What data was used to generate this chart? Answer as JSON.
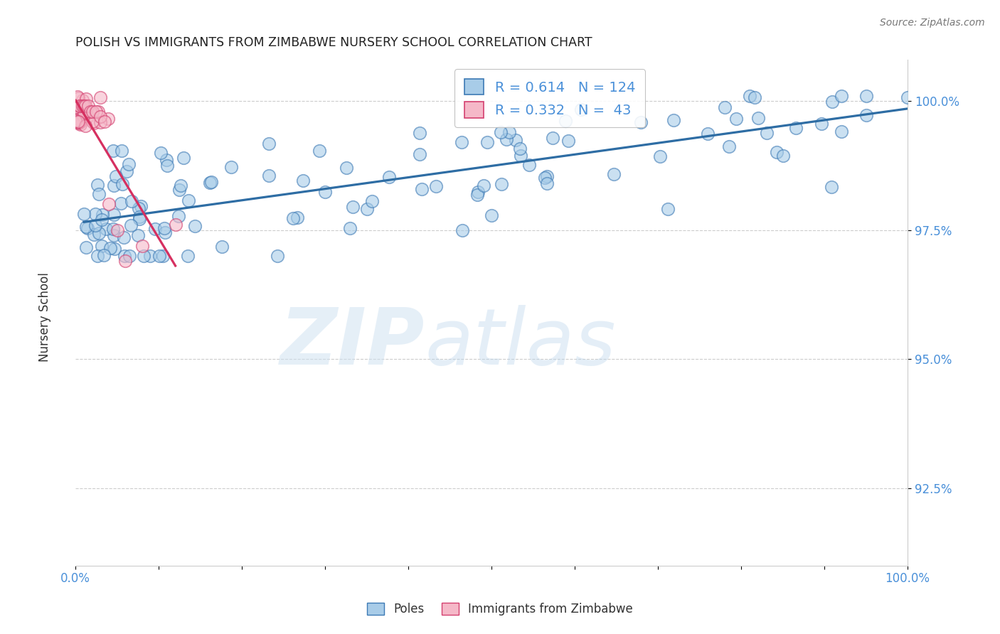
{
  "title": "POLISH VS IMMIGRANTS FROM ZIMBABWE NURSERY SCHOOL CORRELATION CHART",
  "source": "Source: ZipAtlas.com",
  "ylabel": "Nursery School",
  "xlim": [
    0.0,
    1.0
  ],
  "ylim": [
    0.91,
    1.008
  ],
  "yticks": [
    0.925,
    0.95,
    0.975,
    1.0
  ],
  "ytick_labels": [
    "92.5%",
    "95.0%",
    "97.5%",
    "100.0%"
  ],
  "xtick_labels_left": "0.0%",
  "xtick_labels_right": "100.0%",
  "blue_color": "#a8cce8",
  "blue_edge": "#3d7ab5",
  "pink_color": "#f5b8c8",
  "pink_edge": "#d44070",
  "trendline_blue": "#2e6da4",
  "trendline_pink": "#d63060",
  "legend_R_blue": "0.614",
  "legend_N_blue": "124",
  "legend_R_pink": "0.332",
  "legend_N_pink": " 43",
  "legend_label_blue": "Poles",
  "legend_label_pink": "Immigrants from Zimbabwe",
  "grid_color": "#cccccc",
  "tick_color": "#4a90d9",
  "background": "#ffffff"
}
